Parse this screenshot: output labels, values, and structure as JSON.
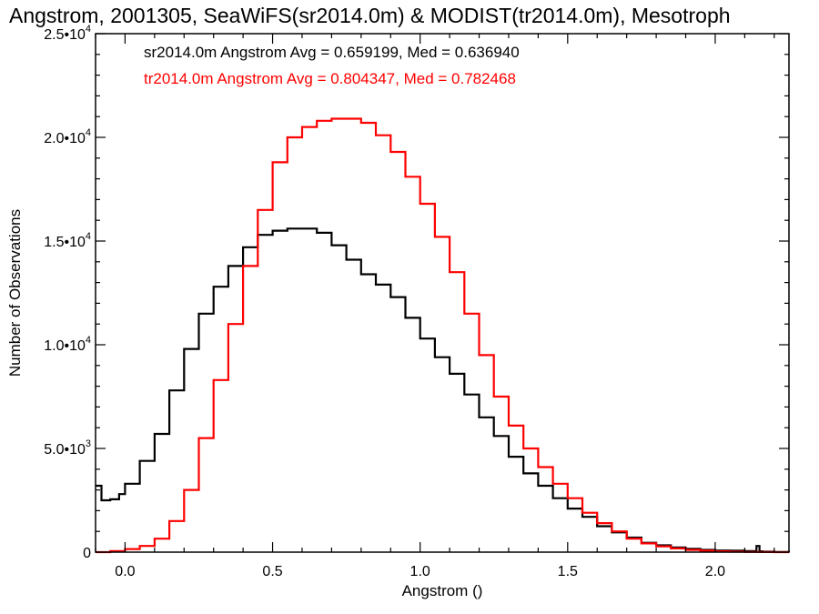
{
  "chart_data": {
    "type": "line",
    "step": true,
    "title": "Angstrom, 2001305, SeaWiFS(sr2014.0m) & MODIST(tr2014.0m), Mesotroph",
    "xlabel": "Angstrom ()",
    "ylabel": "Number of Observations",
    "xlim": [
      -0.1,
      2.25
    ],
    "ylim": [
      0,
      25000
    ],
    "grid": false,
    "x_ticks": [
      {
        "value": 0.0,
        "label": "0.0"
      },
      {
        "value": 0.5,
        "label": "0.5"
      },
      {
        "value": 1.0,
        "label": "1.0"
      },
      {
        "value": 1.5,
        "label": "1.5"
      },
      {
        "value": 2.0,
        "label": "2.0"
      }
    ],
    "y_ticks": [
      {
        "value": 0,
        "label": "0",
        "exp": ""
      },
      {
        "value": 5000,
        "label": "5.0•10",
        "exp": "3"
      },
      {
        "value": 10000,
        "label": "1.0•10",
        "exp": "4"
      },
      {
        "value": 15000,
        "label": "1.5•10",
        "exp": "4"
      },
      {
        "value": 20000,
        "label": "2.0•10",
        "exp": "4"
      },
      {
        "value": 25000,
        "label": "2.5•10",
        "exp": "4"
      }
    ],
    "annotations": [
      {
        "text": "sr2014.0m Angstrom Avg = 0.659199, Med = 0.636940",
        "color": "#000000"
      },
      {
        "text": "tr2014.0m Angstrom Avg = 0.804347, Med = 0.782468",
        "color": "#ff0000"
      }
    ],
    "series": [
      {
        "color": "#000000",
        "x": [
          -0.1,
          -0.08,
          -0.05,
          -0.02,
          0.0,
          0.05,
          0.1,
          0.15,
          0.2,
          0.25,
          0.3,
          0.35,
          0.4,
          0.45,
          0.5,
          0.55,
          0.6,
          0.65,
          0.7,
          0.75,
          0.8,
          0.85,
          0.9,
          0.95,
          1.0,
          1.05,
          1.1,
          1.15,
          1.2,
          1.25,
          1.3,
          1.35,
          1.4,
          1.45,
          1.5,
          1.55,
          1.6,
          1.65,
          1.7,
          1.75,
          1.8,
          1.85,
          1.9,
          1.95,
          2.0,
          2.05,
          2.1,
          2.14,
          2.15,
          2.16,
          2.2,
          2.25
        ],
        "y": [
          3200,
          2500,
          2550,
          2800,
          3300,
          4400,
          5700,
          7800,
          9800,
          11500,
          12800,
          13800,
          14700,
          15300,
          15500,
          15600,
          15600,
          15400,
          14800,
          14100,
          13400,
          12900,
          12300,
          11300,
          10300,
          9400,
          8600,
          7600,
          6500,
          5600,
          4600,
          3800,
          3200,
          2600,
          2100,
          1700,
          1250,
          950,
          700,
          450,
          330,
          230,
          160,
          110,
          80,
          70,
          50,
          300,
          40,
          20,
          10,
          5
        ]
      },
      {
        "color": "#ff0000",
        "x": [
          -0.1,
          -0.05,
          0.0,
          0.05,
          0.1,
          0.15,
          0.2,
          0.25,
          0.3,
          0.35,
          0.4,
          0.45,
          0.5,
          0.55,
          0.6,
          0.65,
          0.7,
          0.75,
          0.8,
          0.85,
          0.9,
          0.95,
          1.0,
          1.05,
          1.1,
          1.15,
          1.2,
          1.25,
          1.3,
          1.35,
          1.4,
          1.45,
          1.5,
          1.55,
          1.6,
          1.65,
          1.7,
          1.75,
          1.8,
          1.85,
          1.9,
          1.95,
          2.0,
          2.05,
          2.1,
          2.15,
          2.2,
          2.25
        ],
        "y": [
          0,
          50,
          150,
          300,
          650,
          1500,
          3000,
          5500,
          8300,
          11000,
          13800,
          16500,
          18800,
          20000,
          20500,
          20800,
          20900,
          20900,
          20700,
          20100,
          19300,
          18100,
          16800,
          15200,
          13500,
          11500,
          9500,
          7500,
          6100,
          5000,
          4100,
          3300,
          2600,
          1900,
          1400,
          1000,
          650,
          420,
          280,
          180,
          110,
          70,
          40,
          20,
          10,
          5,
          2,
          0
        ]
      }
    ]
  }
}
